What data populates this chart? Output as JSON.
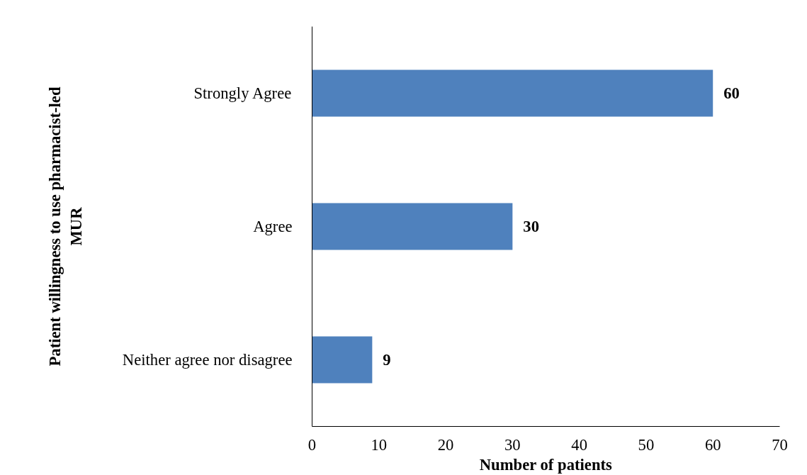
{
  "chart_data": {
    "type": "bar",
    "orientation": "horizontal",
    "categories": [
      "Strongly Agree",
      "Agree",
      "Neither agree nor disagree"
    ],
    "values": [
      60,
      30,
      9
    ],
    "color": "#4f81bd",
    "xlim": [
      0,
      70
    ],
    "xticks": [
      0,
      10,
      20,
      30,
      40,
      50,
      60,
      70
    ],
    "xlabel": "Number of patients",
    "ylabel": "Patient willingness to use pharmacist-led MUR",
    "data_labels": true,
    "grid": false
  }
}
